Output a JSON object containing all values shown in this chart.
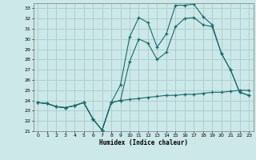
{
  "xlabel": "Humidex (Indice chaleur)",
  "bg_color": "#cce8e8",
  "grid_color": "#aacccc",
  "line_color": "#1a6b6b",
  "ylim": [
    21,
    33.5
  ],
  "xlim": [
    -0.5,
    23.5
  ],
  "yticks": [
    21,
    22,
    23,
    24,
    25,
    26,
    27,
    28,
    29,
    30,
    31,
    32,
    33
  ],
  "xticks": [
    0,
    1,
    2,
    3,
    4,
    5,
    6,
    7,
    8,
    9,
    10,
    11,
    12,
    13,
    14,
    15,
    16,
    17,
    18,
    19,
    20,
    21,
    22,
    23
  ],
  "line1": {
    "x": [
      0,
      1,
      2,
      3,
      4,
      5,
      6,
      7,
      8,
      9,
      10,
      11,
      12,
      13,
      14,
      15,
      16,
      17,
      18,
      19,
      20,
      21,
      22,
      23
    ],
    "y": [
      23.8,
      23.7,
      23.4,
      23.3,
      23.5,
      23.8,
      22.2,
      21.1,
      23.8,
      25.5,
      30.2,
      32.1,
      31.6,
      29.2,
      30.5,
      33.3,
      33.3,
      33.4,
      32.2,
      31.4,
      28.6,
      27.0,
      24.8,
      24.5
    ]
  },
  "line2": {
    "x": [
      0,
      1,
      2,
      3,
      4,
      5,
      6,
      7,
      8,
      9,
      10,
      11,
      12,
      13,
      14,
      15,
      16,
      17,
      18,
      19,
      20,
      21,
      22,
      23
    ],
    "y": [
      23.8,
      23.7,
      23.4,
      23.3,
      23.5,
      23.8,
      22.2,
      21.1,
      23.8,
      24.0,
      27.8,
      30.0,
      29.6,
      28.0,
      28.7,
      31.2,
      32.0,
      32.1,
      31.4,
      31.2,
      28.6,
      27.0,
      24.8,
      24.5
    ]
  },
  "line3": {
    "x": [
      0,
      1,
      2,
      3,
      4,
      5,
      6,
      7,
      8,
      9,
      10,
      11,
      12,
      13,
      14,
      15,
      16,
      17,
      18,
      19,
      20,
      21,
      22,
      23
    ],
    "y": [
      23.8,
      23.7,
      23.4,
      23.3,
      23.5,
      23.8,
      22.2,
      21.1,
      23.8,
      24.0,
      24.1,
      24.2,
      24.3,
      24.4,
      24.5,
      24.5,
      24.6,
      24.6,
      24.7,
      24.8,
      24.8,
      24.9,
      25.0,
      25.0
    ]
  }
}
